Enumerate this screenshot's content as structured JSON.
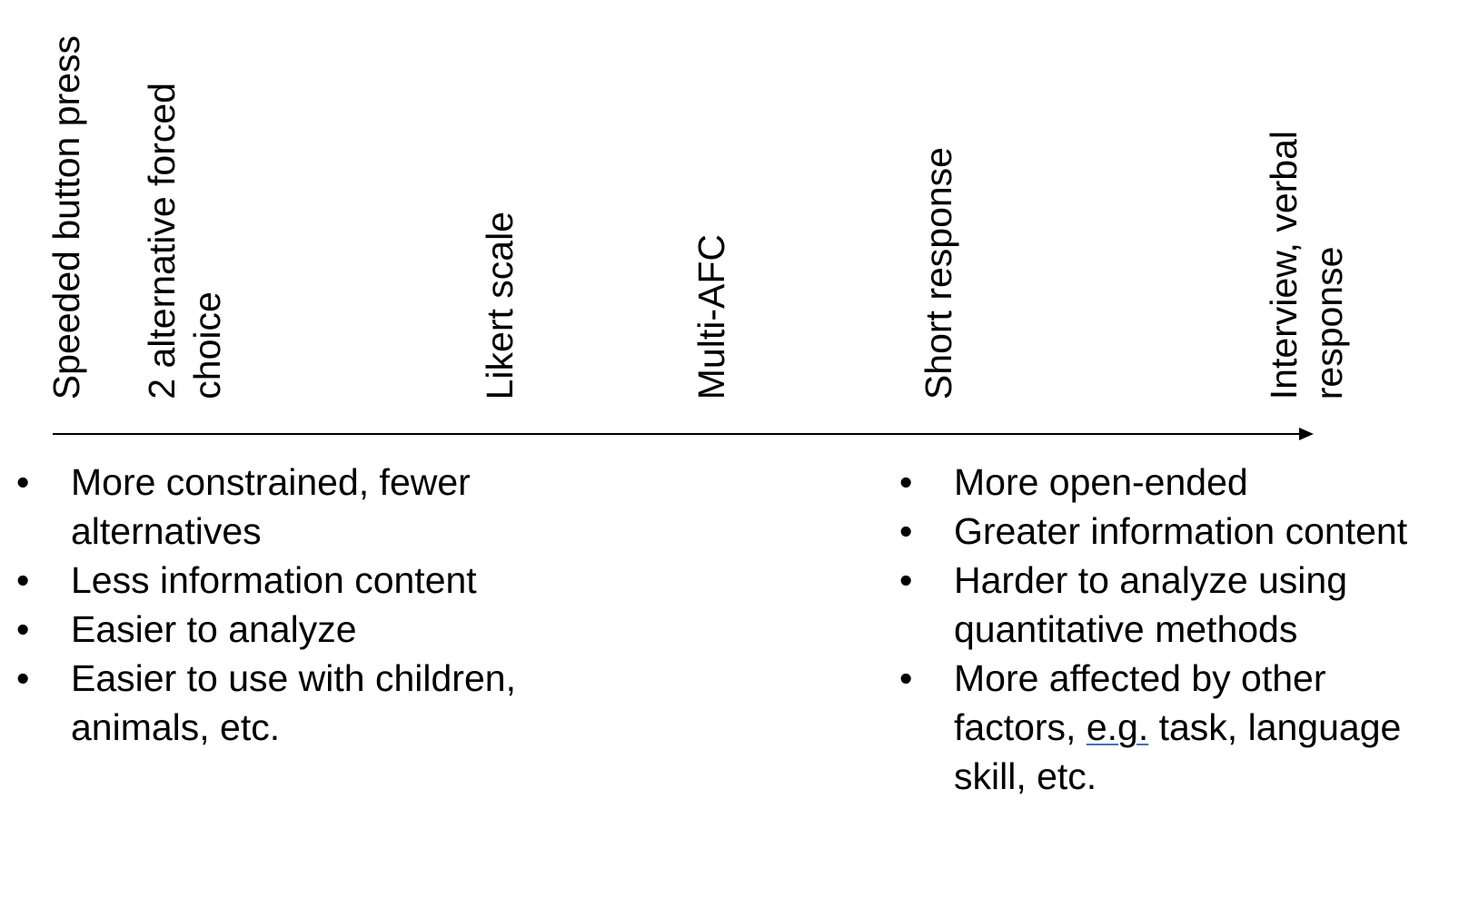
{
  "scale_labels": [
    "Speeded button press",
    "2 alternative forced\nchoice",
    "Likert scale",
    "Multi-AFC",
    "Short response",
    "Interview, verbal\nresponse"
  ],
  "left_bullets": [
    "More constrained, fewer alternatives",
    "Less information content",
    "Easier to analyze",
    "Easier to use with children, animals, etc."
  ],
  "right_bullets": [
    "More open-ended",
    "Greater information content",
    "Harder to analyze using quantitative methods"
  ],
  "right_last_bullet": {
    "before": "More affected by other factors, ",
    "underlined": "e.g.",
    "after": " task, language skill, etc."
  }
}
